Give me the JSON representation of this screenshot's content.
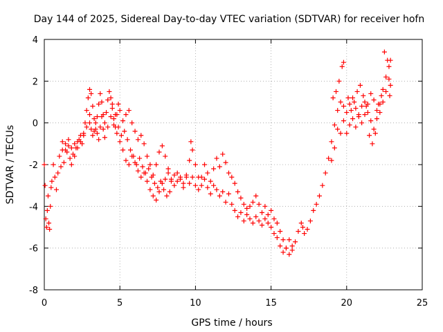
{
  "chart_data": {
    "type": "scatter",
    "title": "Day 144 of 2025, Sidereal Day-to-day VTEC variation (SDTVAR) for receiver hofn",
    "xlabel": "GPS time / hours",
    "ylabel": "SDTVAR / TECUs",
    "xlim": [
      0,
      25
    ],
    "ylim": [
      -8,
      4
    ],
    "xticks": [
      0,
      5,
      10,
      15,
      20,
      25
    ],
    "xtick_labels": [
      "0",
      "5",
      "10",
      "15",
      "20",
      "25"
    ],
    "yticks": [
      -8,
      -6,
      -4,
      -2,
      0,
      2,
      4
    ],
    "ytick_labels": [
      "-8",
      "-6",
      "-4",
      "-2",
      "0",
      "2",
      "4"
    ],
    "grid": true,
    "marker": "+",
    "series": [
      {
        "name": "SDTVAR",
        "color": "#ff0000",
        "points": [
          [
            0.0,
            -2.0
          ],
          [
            0.05,
            -3.0
          ],
          [
            0.1,
            -4.6
          ],
          [
            0.15,
            -5.0
          ],
          [
            0.2,
            -4.2
          ],
          [
            0.25,
            -3.5
          ],
          [
            0.3,
            -4.8
          ],
          [
            0.35,
            -5.1
          ],
          [
            0.4,
            -4.0
          ],
          [
            0.45,
            -3.1
          ],
          [
            0.5,
            -2.8
          ],
          [
            0.6,
            -2.0
          ],
          [
            0.7,
            -2.6
          ],
          [
            0.8,
            -3.2
          ],
          [
            0.9,
            -2.4
          ],
          [
            1.0,
            -1.6
          ],
          [
            1.1,
            -2.1
          ],
          [
            1.2,
            -1.3
          ],
          [
            1.3,
            -1.9
          ],
          [
            1.4,
            -1.0
          ],
          [
            1.5,
            -1.4
          ],
          [
            1.6,
            -1.1
          ],
          [
            1.7,
            -1.7
          ],
          [
            1.8,
            -2.0
          ],
          [
            1.9,
            -1.5
          ],
          [
            2.0,
            -1.0
          ],
          [
            2.1,
            -1.2
          ],
          [
            2.2,
            -0.9
          ],
          [
            2.3,
            -0.8
          ],
          [
            2.4,
            -0.6
          ],
          [
            2.5,
            -1.0
          ],
          [
            2.6,
            -0.5
          ],
          [
            2.7,
            0.0
          ],
          [
            2.8,
            0.6
          ],
          [
            2.9,
            1.2
          ],
          [
            3.0,
            1.6
          ],
          [
            3.1,
            1.4
          ],
          [
            3.2,
            0.8
          ],
          [
            3.3,
            0.2
          ],
          [
            3.4,
            -0.3
          ],
          [
            3.5,
            0.3
          ],
          [
            3.6,
            0.9
          ],
          [
            3.7,
            1.4
          ],
          [
            3.8,
            1.0
          ],
          [
            3.9,
            0.4
          ],
          [
            4.0,
            0.0
          ],
          [
            4.1,
            0.5
          ],
          [
            4.2,
            1.1
          ],
          [
            4.3,
            1.5
          ],
          [
            4.4,
            1.2
          ],
          [
            4.5,
            0.7
          ],
          [
            4.6,
            0.2
          ],
          [
            4.7,
            -0.2
          ],
          [
            4.8,
            0.4
          ],
          [
            4.9,
            0.9
          ],
          [
            5.0,
            0.6
          ],
          [
            5.2,
            0.1
          ],
          [
            5.4,
            0.4
          ],
          [
            5.6,
            0.6
          ],
          [
            5.8,
            0.0
          ],
          [
            6.0,
            -0.4
          ],
          [
            6.2,
            -0.8
          ],
          [
            6.4,
            -0.6
          ],
          [
            6.6,
            -1.0
          ],
          [
            6.8,
            -1.6
          ],
          [
            7.0,
            -2.0
          ],
          [
            7.2,
            -2.5
          ],
          [
            7.4,
            -2.0
          ],
          [
            7.6,
            -1.4
          ],
          [
            7.8,
            -1.1
          ],
          [
            8.0,
            -1.6
          ],
          [
            8.2,
            -2.2
          ],
          [
            8.4,
            -2.8
          ],
          [
            8.6,
            -3.0
          ],
          [
            8.8,
            -2.4
          ],
          [
            9.0,
            -2.7
          ],
          [
            9.2,
            -3.1
          ],
          [
            9.4,
            -2.5
          ],
          [
            9.6,
            -2.9
          ],
          [
            9.8,
            -2.6
          ],
          [
            10.0,
            -3.0
          ],
          [
            10.2,
            -3.2
          ],
          [
            10.4,
            -2.6
          ],
          [
            10.6,
            -2.0
          ],
          [
            10.8,
            -2.4
          ],
          [
            11.0,
            -2.8
          ],
          [
            11.2,
            -2.2
          ],
          [
            11.4,
            -1.7
          ],
          [
            11.6,
            -2.1
          ],
          [
            11.8,
            -1.5
          ],
          [
            12.0,
            -1.9
          ],
          [
            12.2,
            -2.4
          ],
          [
            12.4,
            -2.6
          ],
          [
            12.6,
            -2.9
          ],
          [
            12.8,
            -3.3
          ],
          [
            13.0,
            -3.6
          ],
          [
            13.2,
            -3.9
          ],
          [
            13.4,
            -4.1
          ],
          [
            13.6,
            -4.0
          ],
          [
            13.8,
            -3.8
          ],
          [
            14.0,
            -3.5
          ],
          [
            14.2,
            -3.9
          ],
          [
            14.4,
            -4.3
          ],
          [
            14.6,
            -4.0
          ],
          [
            14.8,
            -4.4
          ],
          [
            15.0,
            -4.2
          ],
          [
            15.2,
            -4.6
          ],
          [
            15.4,
            -4.8
          ],
          [
            15.6,
            -5.2
          ],
          [
            15.8,
            -5.6
          ],
          [
            16.0,
            -6.0
          ],
          [
            16.2,
            -6.3
          ],
          [
            16.4,
            -6.1
          ],
          [
            16.6,
            -5.7
          ],
          [
            16.8,
            -5.2
          ],
          [
            17.0,
            -4.8
          ],
          [
            17.1,
            -5.0
          ],
          [
            17.2,
            -5.3
          ],
          [
            17.4,
            -5.1
          ],
          [
            17.6,
            -4.7
          ],
          [
            17.8,
            -4.2
          ],
          [
            18.0,
            -3.9
          ],
          [
            18.2,
            -3.5
          ],
          [
            18.4,
            -3.0
          ],
          [
            18.6,
            -2.4
          ],
          [
            18.8,
            -1.7
          ],
          [
            19.0,
            -0.9
          ],
          [
            19.2,
            -0.1
          ],
          [
            19.4,
            0.6
          ],
          [
            19.6,
            1.0
          ],
          [
            19.8,
            0.8
          ],
          [
            20.0,
            0.5
          ],
          [
            20.2,
            0.9
          ],
          [
            20.4,
            1.2
          ],
          [
            20.6,
            0.7
          ],
          [
            20.8,
            0.3
          ],
          [
            21.0,
            0.0
          ],
          [
            21.2,
            0.4
          ],
          [
            21.4,
            0.9
          ],
          [
            21.6,
            1.4
          ],
          [
            21.8,
            1.1
          ],
          [
            22.0,
            0.6
          ],
          [
            22.2,
            0.9
          ],
          [
            22.4,
            1.6
          ],
          [
            22.6,
            2.2
          ],
          [
            22.8,
            2.7
          ],
          [
            22.9,
            1.8
          ],
          [
            3.0,
            0.0
          ],
          [
            3.1,
            -0.3
          ],
          [
            3.2,
            -0.6
          ],
          [
            3.3,
            -0.4
          ],
          [
            3.4,
            0.0
          ],
          [
            3.5,
            -0.5
          ],
          [
            3.6,
            -0.8
          ],
          [
            3.7,
            -0.2
          ],
          [
            3.8,
            0.3
          ],
          [
            3.9,
            -0.3
          ],
          [
            4.0,
            -0.7
          ],
          [
            4.2,
            -0.2
          ],
          [
            4.4,
            0.3
          ],
          [
            4.6,
            -0.1
          ],
          [
            4.8,
            -0.5
          ],
          [
            5.0,
            -0.9
          ],
          [
            5.2,
            -1.3
          ],
          [
            5.4,
            -1.8
          ],
          [
            5.6,
            -2.0
          ],
          [
            5.8,
            -1.6
          ],
          [
            6.0,
            -1.9
          ],
          [
            6.2,
            -2.3
          ],
          [
            6.4,
            -2.6
          ],
          [
            6.6,
            -2.4
          ],
          [
            6.8,
            -2.8
          ],
          [
            7.0,
            -3.2
          ],
          [
            7.2,
            -3.5
          ],
          [
            7.4,
            -3.7
          ],
          [
            7.6,
            -3.3
          ],
          [
            7.8,
            -2.9
          ],
          [
            8.0,
            -2.7
          ],
          [
            8.2,
            -2.4
          ],
          [
            8.4,
            -2.7
          ],
          [
            8.6,
            -2.5
          ],
          [
            8.8,
            -2.8
          ],
          [
            9.0,
            -2.6
          ],
          [
            9.2,
            -2.9
          ],
          [
            9.4,
            -2.6
          ],
          [
            9.6,
            -1.8
          ],
          [
            9.7,
            -0.9
          ],
          [
            9.8,
            -1.3
          ],
          [
            10.0,
            -2.0
          ],
          [
            10.2,
            -2.6
          ],
          [
            10.4,
            -3.0
          ],
          [
            10.6,
            -2.7
          ],
          [
            10.8,
            -3.1
          ],
          [
            11.0,
            -3.4
          ],
          [
            11.2,
            -3.0
          ],
          [
            11.4,
            -3.2
          ],
          [
            11.6,
            -3.5
          ],
          [
            11.8,
            -3.3
          ],
          [
            12.0,
            -3.8
          ],
          [
            12.2,
            -3.4
          ],
          [
            12.4,
            -3.9
          ],
          [
            12.6,
            -4.2
          ],
          [
            12.8,
            -4.5
          ],
          [
            13.0,
            -4.3
          ],
          [
            13.2,
            -4.7
          ],
          [
            13.4,
            -4.4
          ],
          [
            13.6,
            -4.6
          ],
          [
            13.8,
            -4.8
          ],
          [
            14.0,
            -4.5
          ],
          [
            14.2,
            -4.7
          ],
          [
            14.4,
            -4.9
          ],
          [
            14.6,
            -4.6
          ],
          [
            14.8,
            -4.8
          ],
          [
            15.0,
            -5.0
          ],
          [
            15.2,
            -5.3
          ],
          [
            15.4,
            -5.5
          ],
          [
            15.6,
            -5.9
          ],
          [
            15.8,
            -6.2
          ],
          [
            16.0,
            -6.0
          ],
          [
            16.2,
            -5.6
          ],
          [
            16.4,
            -5.9
          ],
          [
            19.0,
            -1.8
          ],
          [
            19.2,
            -1.2
          ],
          [
            19.4,
            -0.3
          ],
          [
            19.6,
            -0.5
          ],
          [
            19.8,
            0.1
          ],
          [
            20.0,
            -0.5
          ],
          [
            20.2,
            -0.1
          ],
          [
            20.4,
            0.2
          ],
          [
            20.6,
            -0.2
          ],
          [
            20.8,
            0.4
          ],
          [
            21.0,
            0.8
          ],
          [
            21.2,
            1.0
          ],
          [
            21.4,
            0.5
          ],
          [
            21.6,
            0.1
          ],
          [
            21.8,
            -0.3
          ],
          [
            22.0,
            0.2
          ],
          [
            22.2,
            0.5
          ],
          [
            22.4,
            1.0
          ],
          [
            22.6,
            1.5
          ],
          [
            22.8,
            2.1
          ],
          [
            22.9,
            3.0
          ],
          [
            1.2,
            -0.9
          ],
          [
            1.4,
            -1.3
          ],
          [
            1.6,
            -0.8
          ],
          [
            1.8,
            -1.2
          ],
          [
            2.0,
            -1.6
          ],
          [
            2.2,
            -1.2
          ],
          [
            2.4,
            -0.9
          ],
          [
            2.6,
            -0.6
          ],
          [
            2.8,
            -0.2
          ],
          [
            3.0,
            0.4
          ],
          [
            4.5,
            0.9
          ],
          [
            4.7,
            0.4
          ],
          [
            4.9,
            -0.2
          ],
          [
            5.1,
            -0.6
          ],
          [
            5.3,
            -0.4
          ],
          [
            5.5,
            -0.8
          ],
          [
            5.7,
            -1.3
          ],
          [
            5.9,
            -1.6
          ],
          [
            6.1,
            -2.0
          ],
          [
            6.3,
            -1.7
          ],
          [
            6.5,
            -2.1
          ],
          [
            6.7,
            -2.4
          ],
          [
            6.9,
            -2.2
          ],
          [
            7.1,
            -2.6
          ],
          [
            7.3,
            -2.9
          ],
          [
            7.5,
            -3.1
          ],
          [
            7.7,
            -2.8
          ],
          [
            7.9,
            -3.2
          ],
          [
            8.1,
            -3.5
          ],
          [
            8.3,
            -3.3
          ],
          [
            19.1,
            1.2
          ],
          [
            19.3,
            1.5
          ],
          [
            19.5,
            2.0
          ],
          [
            19.7,
            2.7
          ],
          [
            19.8,
            2.9
          ],
          [
            20.1,
            1.2
          ],
          [
            20.3,
            0.6
          ],
          [
            20.5,
            1.0
          ],
          [
            20.7,
            1.5
          ],
          [
            20.9,
            1.8
          ],
          [
            21.1,
            1.3
          ],
          [
            21.3,
            0.8
          ],
          [
            21.5,
            -0.6
          ],
          [
            21.7,
            -1.0
          ],
          [
            21.9,
            -0.5
          ],
          [
            22.1,
            0.9
          ],
          [
            22.3,
            1.3
          ],
          [
            22.5,
            3.4
          ],
          [
            22.7,
            3.0
          ],
          [
            22.85,
            1.3
          ]
        ]
      }
    ]
  }
}
